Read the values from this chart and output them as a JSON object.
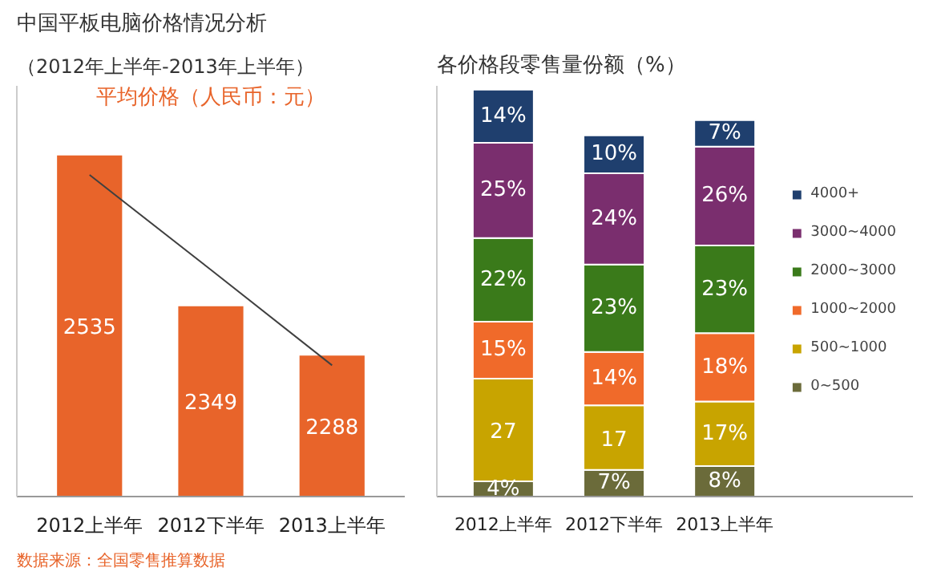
{
  "chart_data": [
    {
      "type": "bar",
      "title": "中国平板电脑价格情况分析",
      "subtitle": "（2012年上半年-2013年上半年）",
      "categories": [
        "2012上半年",
        "2012下半年",
        "2013上半年"
      ],
      "ylim": [
        2113,
        2620
      ],
      "tick_labels": "x",
      "grid": false,
      "series": [
        {
          "color": "#e8642a",
          "values": [
            2535,
            2349,
            2288
          ],
          "value_labels": [
            "2535",
            "2349",
            "2288"
          ]
        },
        {
          "type": "line",
          "color": "#404040",
          "values": [
            2510,
            2393,
            2275
          ]
        }
      ],
      "annotations": [
        "平均价格（人民币：元）",
        "数据来源：全国零售推算数据"
      ]
    },
    {
      "type": "bar",
      "title": "各价格段零售量份额（%）",
      "categories": [
        "2012上半年",
        "2012下半年",
        "2013上半年"
      ],
      "stacked": true,
      "ylim": [
        0,
        108
      ],
      "tick_labels": "x",
      "grid": false,
      "legend": "right",
      "series": [
        {
          "name": "0~500",
          "color": "#6b6b3a",
          "values": [
            4,
            7,
            8
          ],
          "value_labels": [
            "4%",
            "7%",
            "8%"
          ]
        },
        {
          "name": "500~1000",
          "color": "#c8a400",
          "values": [
            27,
            17,
            17
          ],
          "value_labels": [
            "27",
            "17",
            "17%"
          ]
        },
        {
          "name": "1000~2000",
          "color": "#f06a2a",
          "values": [
            15,
            14,
            18
          ],
          "value_labels": [
            "15%",
            "14%",
            "18%"
          ]
        },
        {
          "name": "2000~3000",
          "color": "#3a7a1a",
          "values": [
            22,
            23,
            23
          ],
          "value_labels": [
            "22%",
            "23%",
            "23%"
          ]
        },
        {
          "name": "3000~4000",
          "color": "#7a2e6e",
          "values": [
            25,
            24,
            26
          ],
          "value_labels": [
            "25%",
            "24%",
            "26%"
          ]
        },
        {
          "name": "4000+",
          "color": "#1f3f6e",
          "values": [
            14,
            10,
            7
          ],
          "value_labels": [
            "14%",
            "10%",
            "7%"
          ]
        }
      ]
    }
  ]
}
